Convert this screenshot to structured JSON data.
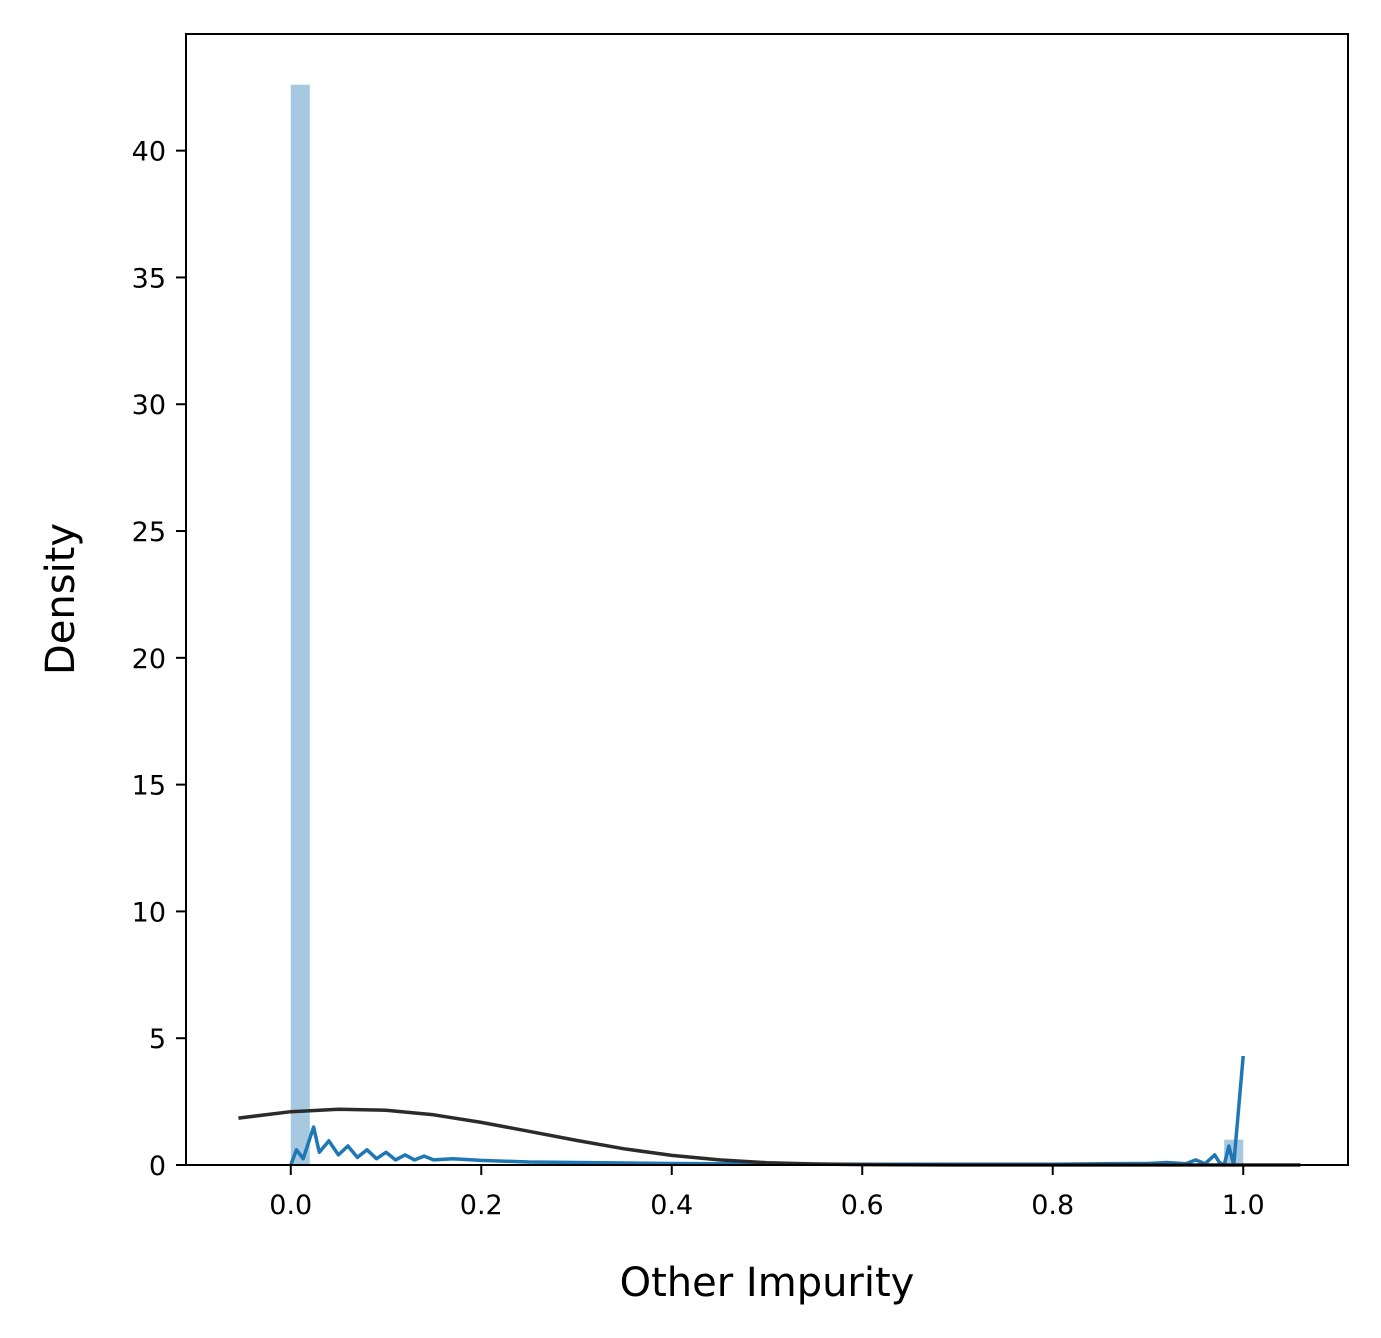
{
  "chart_data": {
    "type": "histogram",
    "title": "",
    "xlabel": "Other Impurity",
    "ylabel": "Density",
    "xlim": [
      -0.11,
      1.11
    ],
    "ylim": [
      0,
      44.6
    ],
    "x_ticks": [
      0.0,
      0.2,
      0.4,
      0.6,
      0.8,
      1.0
    ],
    "x_tick_labels": [
      "0.0",
      "0.2",
      "0.4",
      "0.6",
      "0.8",
      "1.0"
    ],
    "y_ticks": [
      0,
      5,
      10,
      15,
      20,
      25,
      30,
      35,
      40
    ],
    "y_tick_labels": [
      "0",
      "5",
      "10",
      "15",
      "20",
      "25",
      "30",
      "35",
      "40"
    ],
    "grid": false,
    "histogram": {
      "color": "#a6c8e1",
      "bins": [
        {
          "x0": 0.0,
          "x1": 0.02,
          "density": 42.6
        },
        {
          "x0": 0.98,
          "x1": 1.0,
          "density": 1.0
        }
      ]
    },
    "series": [
      {
        "kind": "kde",
        "color": "#1f77b4",
        "x": [
          0.0,
          0.006,
          0.013,
          0.024,
          0.03,
          0.04,
          0.05,
          0.06,
          0.07,
          0.08,
          0.09,
          0.1,
          0.11,
          0.12,
          0.13,
          0.14,
          0.15,
          0.17,
          0.2,
          0.25,
          0.3,
          0.4,
          0.5,
          0.6,
          0.7,
          0.8,
          0.85,
          0.9,
          0.92,
          0.94,
          0.95,
          0.96,
          0.97,
          0.975,
          0.98,
          0.985,
          0.99,
          1.0
        ],
        "y": [
          0.0,
          0.6,
          0.25,
          1.5,
          0.5,
          0.95,
          0.4,
          0.75,
          0.3,
          0.6,
          0.25,
          0.5,
          0.2,
          0.4,
          0.2,
          0.35,
          0.2,
          0.25,
          0.18,
          0.12,
          0.1,
          0.06,
          0.04,
          0.03,
          0.03,
          0.03,
          0.05,
          0.06,
          0.1,
          0.05,
          0.2,
          0.05,
          0.4,
          0.1,
          0.0,
          0.75,
          0.0,
          4.3
        ]
      },
      {
        "kind": "fit",
        "color": "#2b2b2b",
        "x": [
          -0.055,
          0.0,
          0.05,
          0.1,
          0.15,
          0.2,
          0.25,
          0.3,
          0.35,
          0.4,
          0.45,
          0.5,
          0.55,
          0.6,
          0.7,
          0.8,
          0.9,
          1.0,
          1.06
        ],
        "y": [
          1.85,
          2.1,
          2.2,
          2.16,
          1.98,
          1.68,
          1.33,
          0.97,
          0.64,
          0.38,
          0.2,
          0.09,
          0.04,
          0.015,
          0.0,
          0.0,
          0.0,
          0.0,
          0.0
        ]
      }
    ]
  }
}
